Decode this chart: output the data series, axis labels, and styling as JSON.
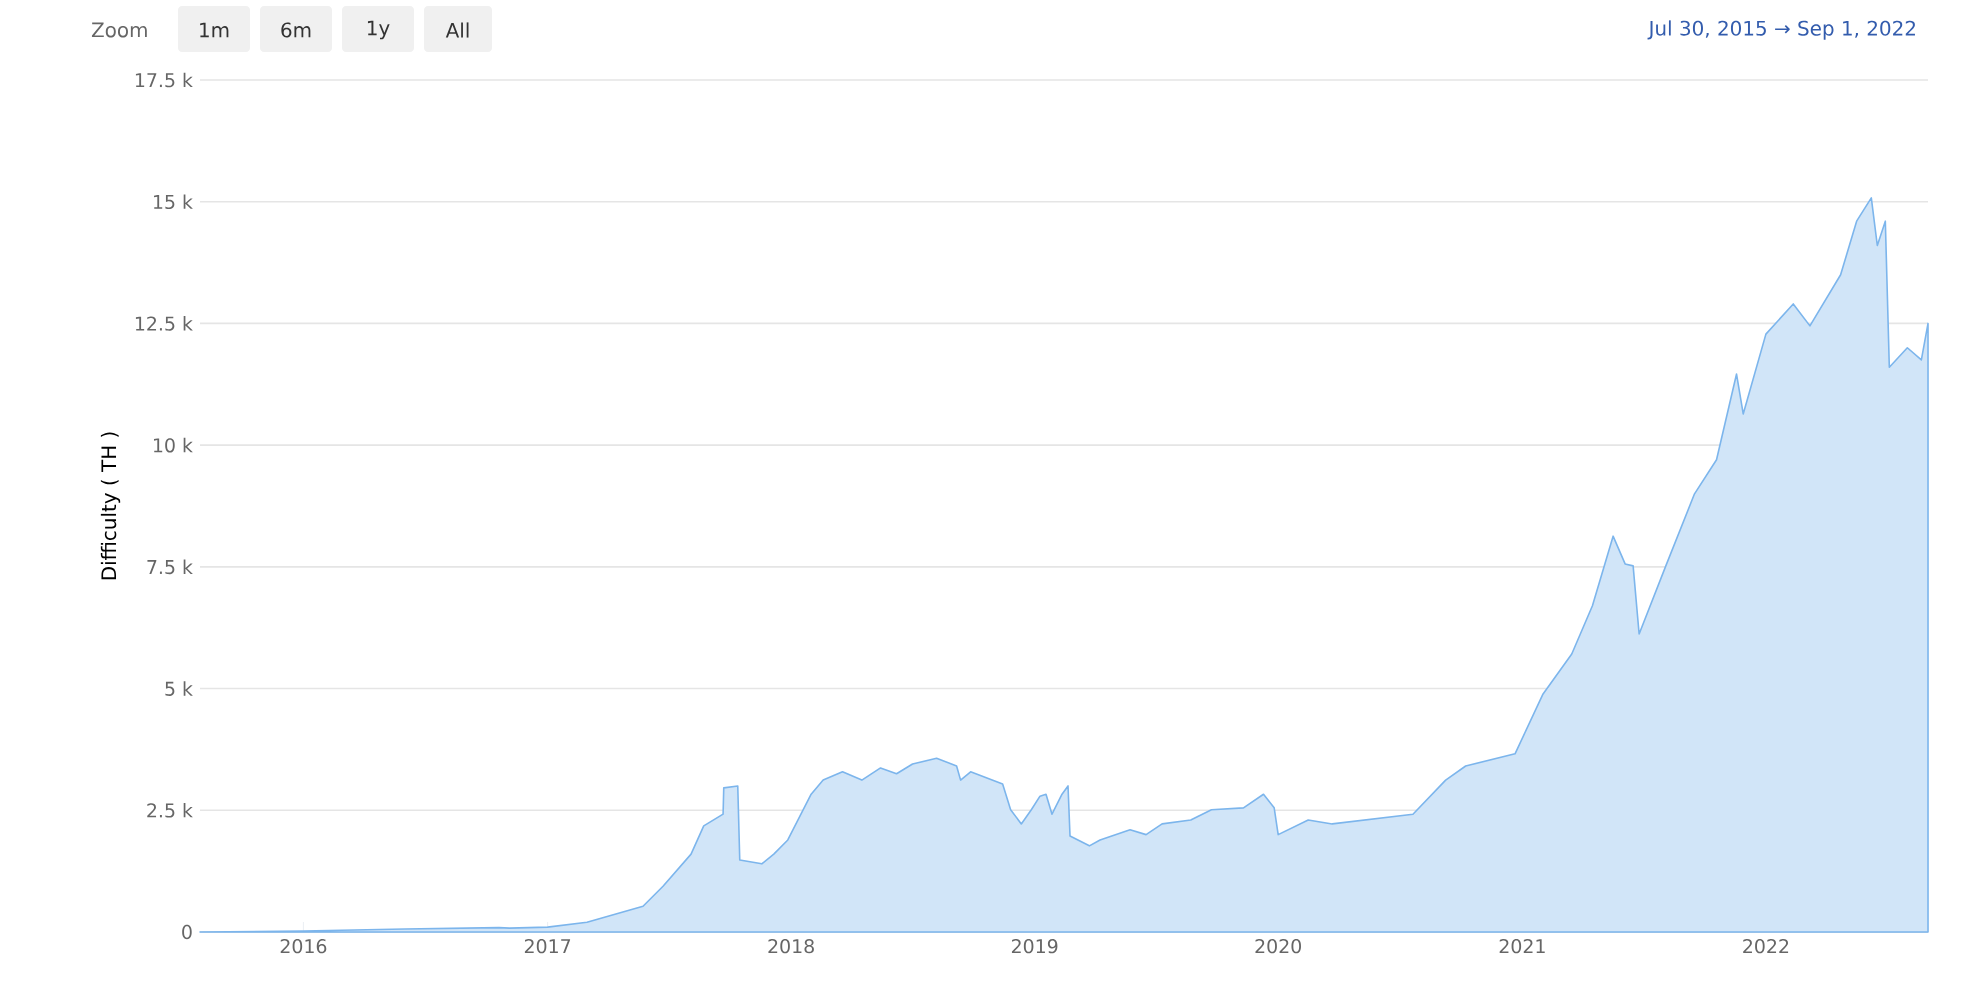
{
  "chart_data": {
    "type": "area",
    "ylabel": "Difficulty ( TH )",
    "color": "#7cb5ec",
    "grid": "y",
    "annotations": [
      "Zoom",
      "1m",
      "6m",
      "1y",
      "All",
      "Jul 30, 2015 → Sep 1, 2022"
    ],
    "xlim": [
      "2015-07-30",
      "2022-09-01"
    ],
    "xticks": [
      {
        "value": "2016-01-01",
        "label": "2016"
      },
      {
        "value": "2017-01-01",
        "label": "2017"
      },
      {
        "value": "2018-01-01",
        "label": "2018"
      },
      {
        "value": "2019-01-01",
        "label": "2019"
      },
      {
        "value": "2020-01-01",
        "label": "2020"
      },
      {
        "value": "2021-01-01",
        "label": "2021"
      },
      {
        "value": "2022-01-01",
        "label": "2022"
      }
    ],
    "ylim": [
      0,
      17500
    ],
    "yticks": [
      0,
      {
        "value": 2500,
        "label": "2.5 k"
      },
      {
        "value": 5000,
        "label": "5 k"
      },
      {
        "value": 7500,
        "label": "7.5 k"
      },
      {
        "value": 10000,
        "label": "10 k"
      },
      {
        "value": 12500,
        "label": "12.5 k"
      },
      {
        "value": 15000,
        "label": "15 k"
      },
      {
        "value": 17500,
        "label": "17.5 k"
      }
    ],
    "x": [
      "2015-07-30",
      "2016-01-01",
      "2016-06-01",
      "2016-10-20",
      "2016-11-05",
      "2017-01-01",
      "2017-03-01",
      "2017-05-24",
      "2017-06-23",
      "2017-08-04",
      "2017-08-23",
      "2017-09-21",
      "2017-09-22",
      "2017-10-13",
      "2017-10-16",
      "2017-11-18",
      "2017-12-06",
      "2017-12-27",
      "2018-01-31",
      "2018-02-18",
      "2018-03-19",
      "2018-04-17",
      "2018-05-15",
      "2018-06-08",
      "2018-07-02",
      "2018-08-07",
      "2018-09-06",
      "2018-09-12",
      "2018-09-27",
      "2018-11-14",
      "2018-11-26",
      "2018-12-12",
      "2018-12-27",
      "2019-01-09",
      "2019-01-18",
      "2019-01-27",
      "2019-02-11",
      "2019-02-20",
      "2019-02-23",
      "2019-03-24",
      "2019-04-09",
      "2019-05-24",
      "2019-06-17",
      "2019-07-11",
      "2019-08-23",
      "2019-09-23",
      "2019-11-10",
      "2019-12-10",
      "2019-12-26",
      "2020-01-01",
      "2020-02-15",
      "2020-03-22",
      "2020-07-21",
      "2020-09-08",
      "2020-10-08",
      "2020-12-21",
      "2021-02-01",
      "2021-03-16",
      "2021-04-16",
      "2021-05-17",
      "2021-06-04",
      "2021-06-16",
      "2021-06-25",
      "2021-08-04",
      "2021-09-16",
      "2021-10-19",
      "2021-11-18",
      "2021-11-28",
      "2022-01-01",
      "2022-02-11",
      "2022-03-08",
      "2022-04-23",
      "2022-05-17",
      "2022-06-08",
      "2022-06-17",
      "2022-06-29",
      "2022-07-05",
      "2022-08-01",
      "2022-08-22",
      "2022-09-01"
    ],
    "values": [
      0,
      20,
      60,
      90,
      80,
      100,
      200,
      530,
      940,
      1600,
      2180,
      2420,
      2960,
      3000,
      1480,
      1400,
      1600,
      1890,
      2830,
      3120,
      3290,
      3120,
      3370,
      3250,
      3450,
      3570,
      3410,
      3120,
      3290,
      3040,
      2510,
      2220,
      2510,
      2790,
      2830,
      2420,
      2830,
      3000,
      1970,
      1770,
      1890,
      2100,
      2000,
      2220,
      2300,
      2510,
      2550,
      2830,
      2550,
      2000,
      2300,
      2220,
      2420,
      3120,
      3410,
      3660,
      4890,
      5710,
      6700,
      8130,
      7560,
      7520,
      6120,
      7520,
      9000,
      9700,
      11460,
      10640,
      12280,
      12900,
      12450,
      13500,
      14600,
      15080,
      14100,
      14600,
      11600,
      12000,
      11750,
      12500
    ]
  }
}
